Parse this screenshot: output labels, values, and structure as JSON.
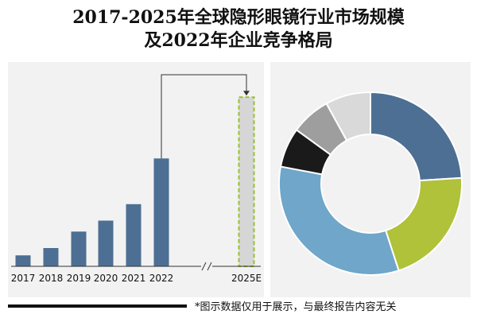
{
  "title_line1": "2017-2025年全球隐形眼镜行业市场规模",
  "title_line2": "及2022年企业竞争格局",
  "footnote": "*图示数据仅用于展示，与最终报告内容无关",
  "chart_data": [
    {
      "type": "bar",
      "categories": [
        "2017",
        "2018",
        "2019",
        "2020",
        "2021",
        "2022",
        "2025E"
      ],
      "values": [
        12,
        20,
        38,
        50,
        68,
        118,
        185
      ],
      "projected": [
        false,
        false,
        false,
        false,
        false,
        false,
        true
      ],
      "axis_break": true,
      "grid": false,
      "colors": {
        "bar": "#4d6f93",
        "projected_fill": "#d6d6d6",
        "projected_border": "#9cbe35"
      },
      "ylim": [
        0,
        200
      ]
    },
    {
      "type": "pie",
      "variant": "donut",
      "slices": [
        {
          "value": 24,
          "color": "#4d6f93"
        },
        {
          "value": 21,
          "color": "#b0c13a"
        },
        {
          "value": 33,
          "color": "#6fa6c9"
        },
        {
          "value": 7,
          "color": "#1a1a1a"
        },
        {
          "value": 7,
          "color": "#9e9e9e"
        },
        {
          "value": 8,
          "color": "#d9d9d9"
        }
      ],
      "start_angle_deg": 0
    }
  ]
}
